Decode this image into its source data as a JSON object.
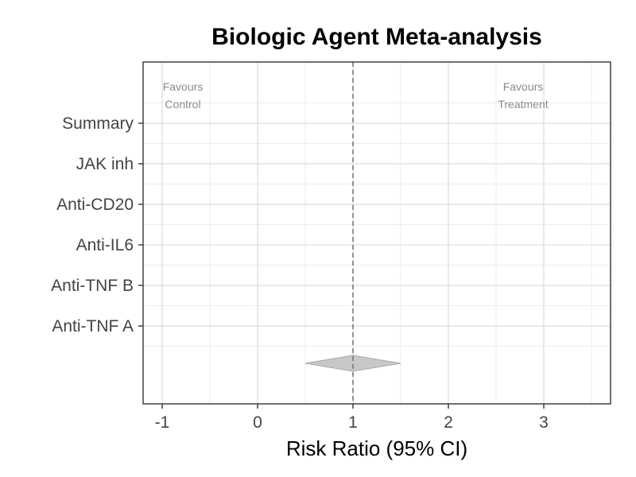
{
  "chart_data": {
    "type": "forest",
    "title": "Biologic Agent Meta-analysis",
    "xlabel": "Risk Ratio (95% CI)",
    "ylabel": "",
    "xlim": [
      -1.2,
      3.7
    ],
    "xticks": [
      -1,
      0,
      1,
      2,
      3
    ],
    "reference_line": 1,
    "grid": true,
    "categories": [
      "Anti-TNF A",
      "Anti-TNF B",
      "Anti-IL6",
      "Anti-CD20",
      "JAK inh",
      "Summary"
    ],
    "summary_estimate": {
      "estimate": 1.0,
      "lower": 0.5,
      "upper": 1.5
    },
    "annotations": {
      "left": [
        "Favours",
        "Control"
      ],
      "right": [
        "Favours",
        "Treatment"
      ]
    },
    "colors": {
      "diamond_fill": "#c8c8c8",
      "diamond_stroke": "#a8a8a8",
      "reference_line": "#777777",
      "grid_major": "#d6d6d6",
      "grid_minor": "#ececec",
      "panel_border": "#333333"
    }
  }
}
